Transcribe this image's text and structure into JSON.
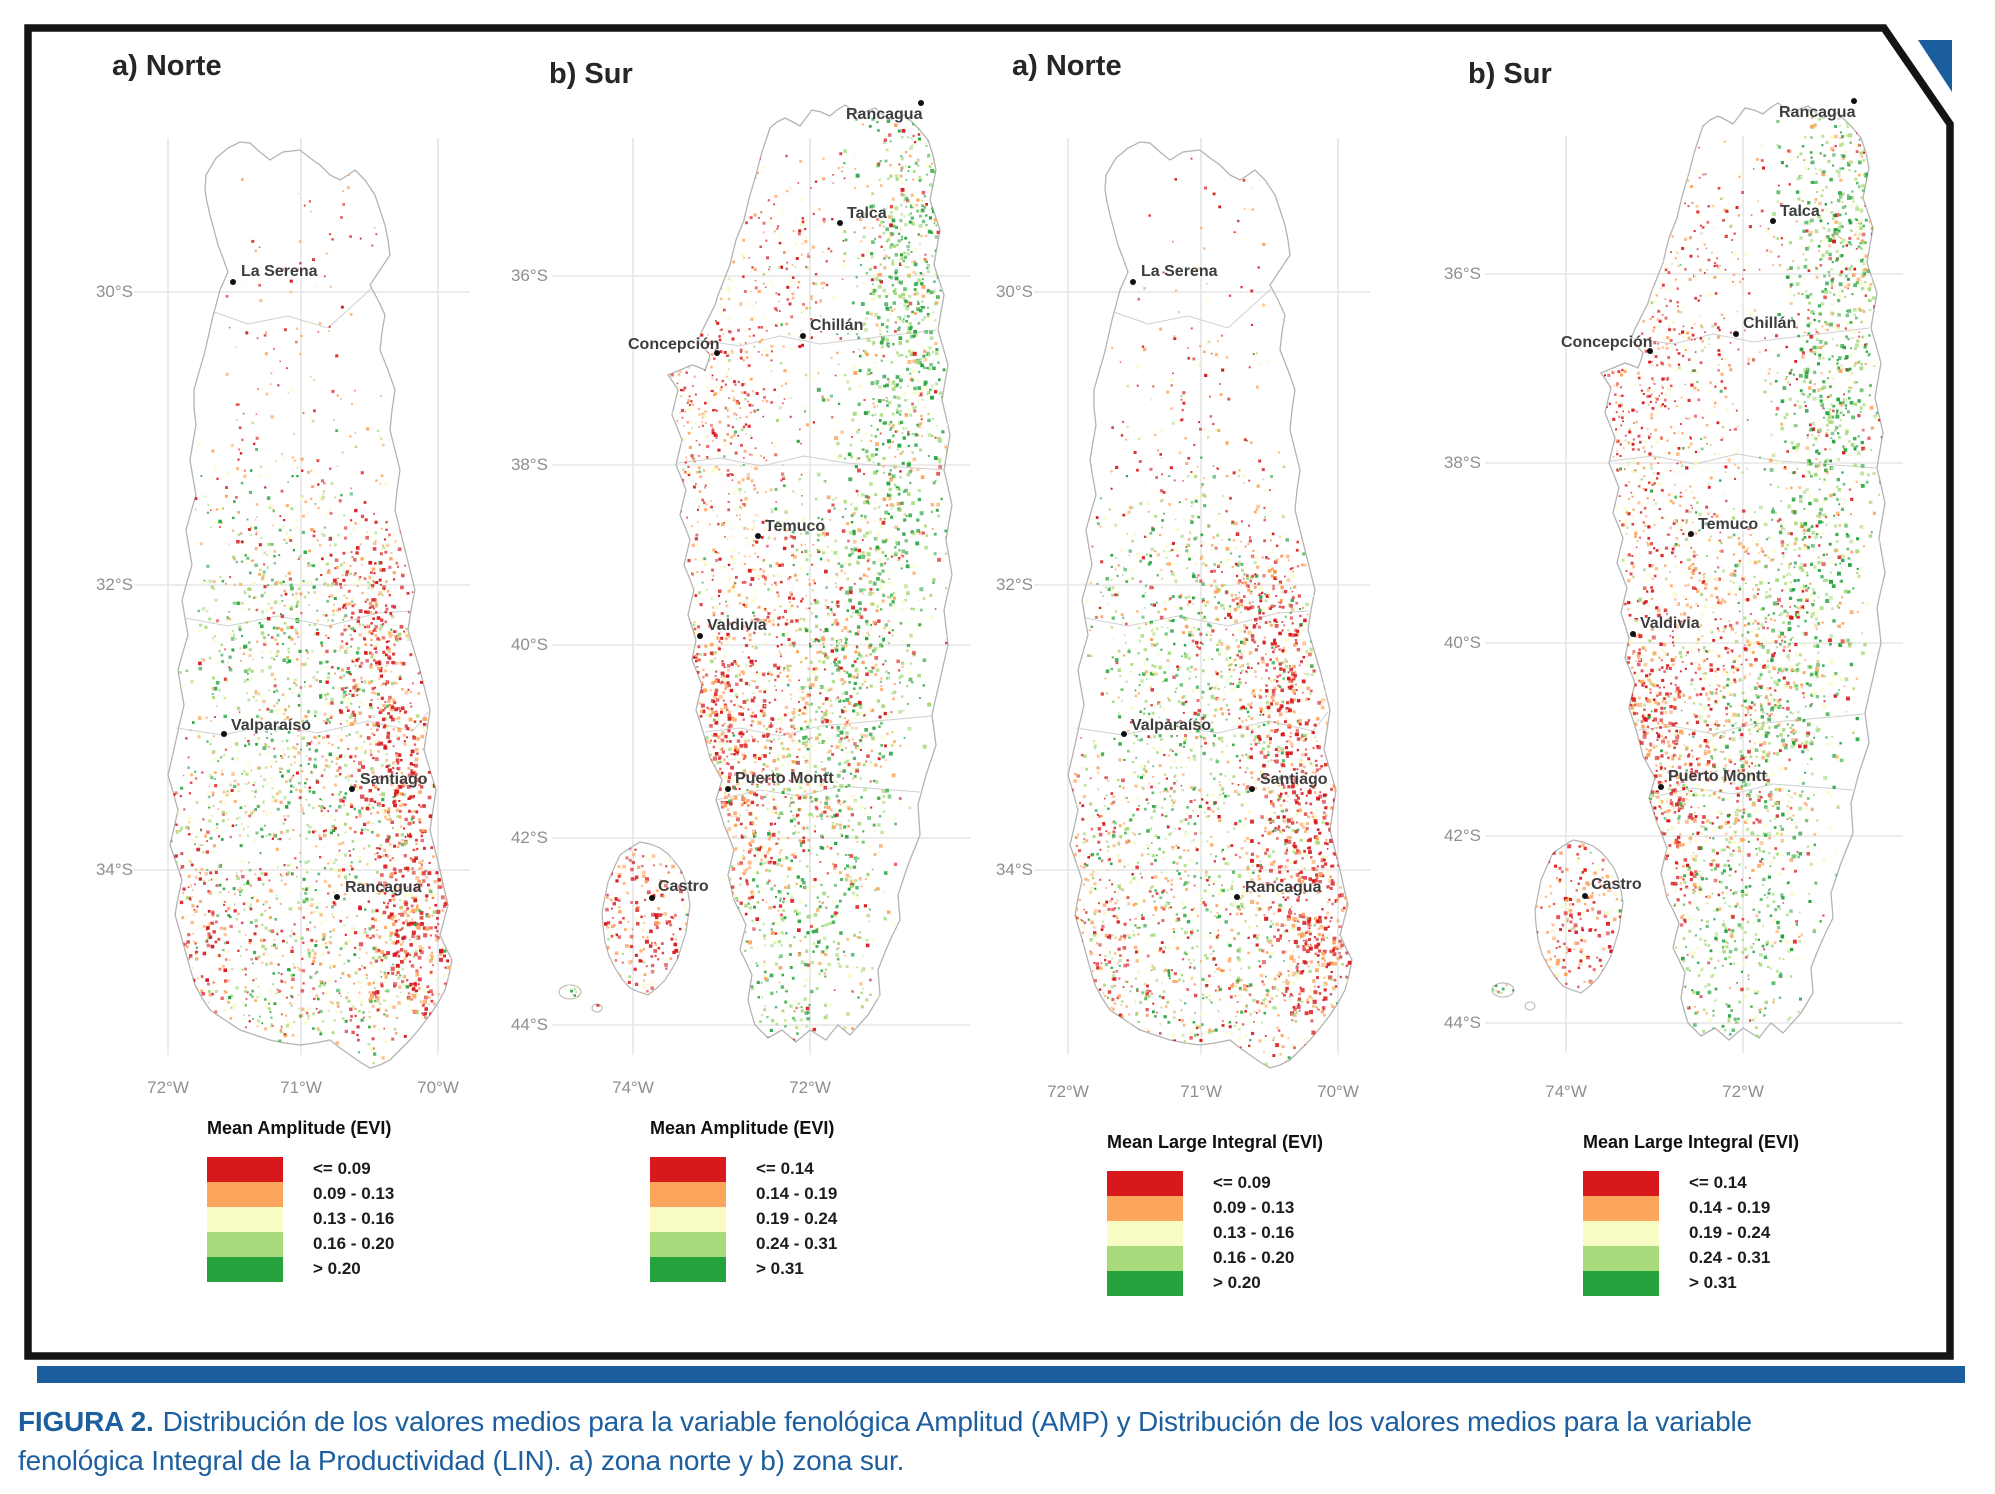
{
  "figure": {
    "caption_label": "FIGURA 2.",
    "caption_line1": "Distribución de los valores medios para la variable fenológica Amplitud (AMP) y Distribución de los valores medios para la variable",
    "caption_line2": "fenológica Integral de la Productividad (LIN). a) zona norte y b) zona sur.",
    "accent_blue": "#1b5e9e",
    "frame_color": "#141414",
    "map_outline_color": "#b3b3b3",
    "admin_line_color": "#cfcfcf",
    "grid_color": "#ececec"
  },
  "palette": {
    "class_colors": [
      "#d7191c",
      "#fca55d",
      "#f8fbc4",
      "#a8da7c",
      "#27a33e"
    ]
  },
  "panels": [
    {
      "id": "norte-amplitude",
      "title": "a) Norte",
      "zone": "norte",
      "legend": {
        "title": "Mean Amplitude (EVI)",
        "classes": [
          {
            "label": "<= 0.09",
            "color": "#d7191c"
          },
          {
            "label": "0.09 - 0.13",
            "color": "#fca55d"
          },
          {
            "label": "0.13 - 0.16",
            "color": "#f8fbc4"
          },
          {
            "label": "0.16 - 0.20",
            "color": "#a8da7c"
          },
          {
            "label": "> 0.20",
            "color": "#27a33e"
          }
        ]
      },
      "lat_ticks": [
        "30°S",
        "32°S",
        "34°S"
      ],
      "lon_ticks": [
        "72°W",
        "71°W",
        "70°W"
      ],
      "cities": [
        "La Serena",
        "Valparaíso",
        "Santiago",
        "Rancagua"
      ]
    },
    {
      "id": "sur-amplitude",
      "title": "b) Sur",
      "zone": "sur",
      "legend": {
        "title": "Mean Amplitude (EVI)",
        "classes": [
          {
            "label": "<= 0.14",
            "color": "#d7191c"
          },
          {
            "label": "0.14 - 0.19",
            "color": "#fca55d"
          },
          {
            "label": "0.19 - 0.24",
            "color": "#f8fbc4"
          },
          {
            "label": "0.24 - 0.31",
            "color": "#a8da7c"
          },
          {
            "label": "> 0.31",
            "color": "#27a33e"
          }
        ]
      },
      "lat_ticks": [
        "36°S",
        "38°S",
        "40°S",
        "42°S",
        "44°S"
      ],
      "lon_ticks": [
        "74°W",
        "72°W"
      ],
      "cities": [
        "Rancagua",
        "Talca",
        "Chillán",
        "Concepción",
        "Temuco",
        "Valdivia",
        "Puerto Montt",
        "Castro"
      ]
    },
    {
      "id": "norte-large-integral",
      "title": "a) Norte",
      "zone": "norte",
      "legend": {
        "title": "Mean Large Integral (EVI)",
        "classes": [
          {
            "label": "<= 0.09",
            "color": "#d7191c"
          },
          {
            "label": "0.09 - 0.13",
            "color": "#fca55d"
          },
          {
            "label": "0.13 - 0.16",
            "color": "#f8fbc4"
          },
          {
            "label": "0.16 - 0.20",
            "color": "#a8da7c"
          },
          {
            "label": "> 0.20",
            "color": "#27a33e"
          }
        ]
      },
      "lat_ticks": [
        "30°S",
        "32°S",
        "34°S"
      ],
      "lon_ticks": [
        "72°W",
        "71°W",
        "70°W"
      ],
      "cities": [
        "La Serena",
        "Valparaíso",
        "Santiago",
        "Rancagua"
      ]
    },
    {
      "id": "sur-large-integral",
      "title": "b) Sur",
      "zone": "sur",
      "legend": {
        "title": "Mean Large Integral (EVI)",
        "classes": [
          {
            "label": "<= 0.14",
            "color": "#d7191c"
          },
          {
            "label": "0.14 - 0.19",
            "color": "#fca55d"
          },
          {
            "label": "0.19 - 0.24",
            "color": "#f8fbc4"
          },
          {
            "label": "0.24 - 0.31",
            "color": "#a8da7c"
          },
          {
            "label": "> 0.31",
            "color": "#27a33e"
          }
        ]
      },
      "lat_ticks": [
        "36°S",
        "38°S",
        "40°S",
        "42°S",
        "44°S"
      ],
      "lon_ticks": [
        "74°W",
        "72°W"
      ],
      "cities": [
        "Rancagua",
        "Talca",
        "Chillán",
        "Concepción",
        "Temuco",
        "Valdivia",
        "Puerto Montt",
        "Castro"
      ]
    }
  ]
}
